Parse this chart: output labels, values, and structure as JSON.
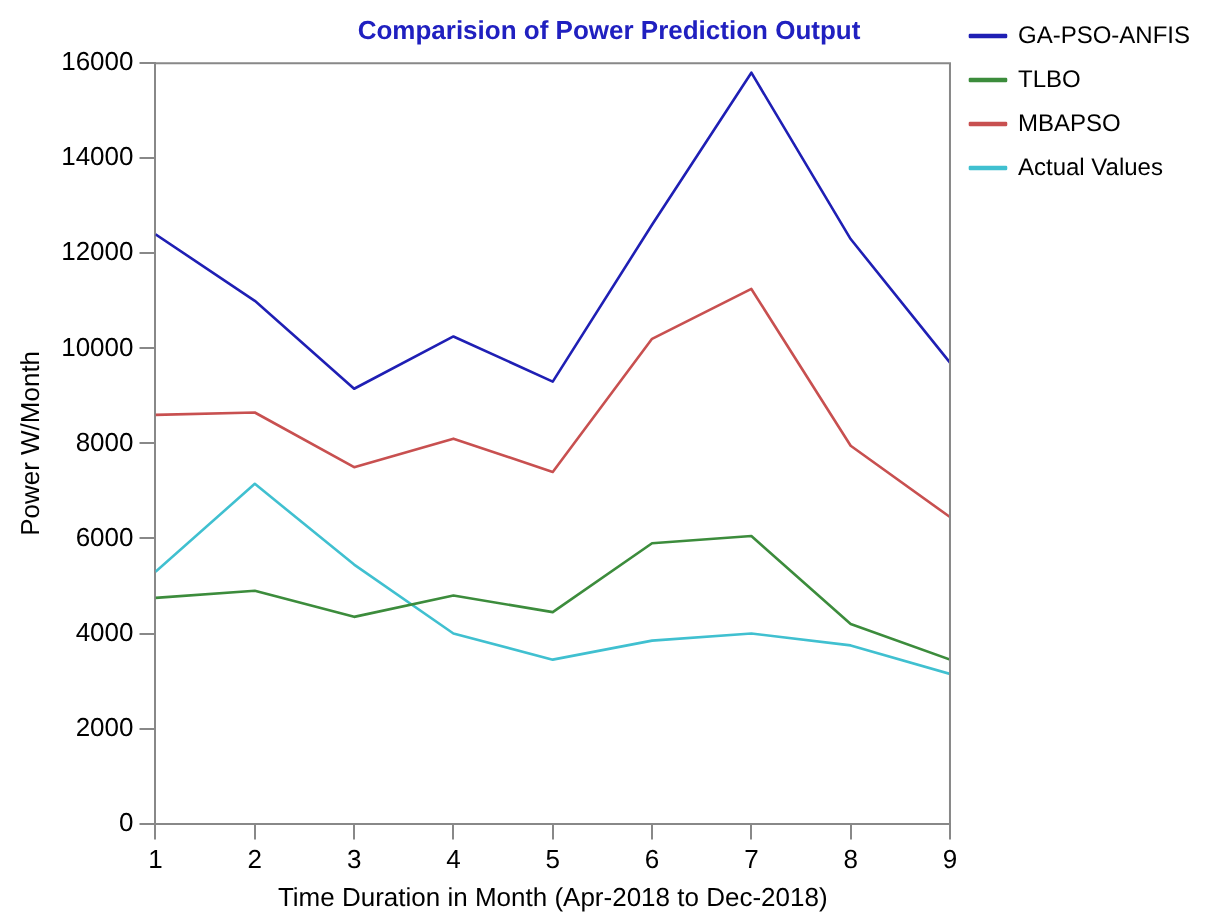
{
  "chart_data": {
    "type": "line",
    "title": "Comparision of Power Prediction Output",
    "xlabel": "Time Duration in Month (Apr-2018 to Dec-2018)",
    "ylabel": "Power W/Month",
    "x": [
      1,
      2,
      3,
      4,
      5,
      6,
      7,
      8,
      9
    ],
    "series": [
      {
        "name": "GA-PSO-ANFIS",
        "color": "#1f1fb4",
        "values": [
          12400,
          11000,
          9150,
          10250,
          9300,
          12600,
          15800,
          12300,
          9700
        ]
      },
      {
        "name": "TLBO",
        "color": "#3c8c3c",
        "values": [
          4750,
          4900,
          4350,
          4800,
          4450,
          5900,
          6050,
          4200,
          3450
        ]
      },
      {
        "name": "MBAPSO",
        "color": "#c85050",
        "values": [
          8600,
          8650,
          7500,
          8100,
          7400,
          10200,
          11250,
          7950,
          6450
        ]
      },
      {
        "name": "Actual Values",
        "color": "#40c0d0",
        "values": [
          5300,
          7150,
          5450,
          4000,
          3450,
          3850,
          4000,
          3750,
          3150
        ]
      }
    ],
    "xlim": [
      1,
      9
    ],
    "xticks": [
      1,
      2,
      3,
      4,
      5,
      6,
      7,
      8,
      9
    ],
    "ylim": [
      0,
      16000
    ],
    "yticks": [
      0,
      2000,
      4000,
      6000,
      8000,
      10000,
      12000,
      14000,
      16000
    ],
    "grid": false,
    "legend": "top right",
    "marker": "none",
    "line_style": "solid"
  }
}
